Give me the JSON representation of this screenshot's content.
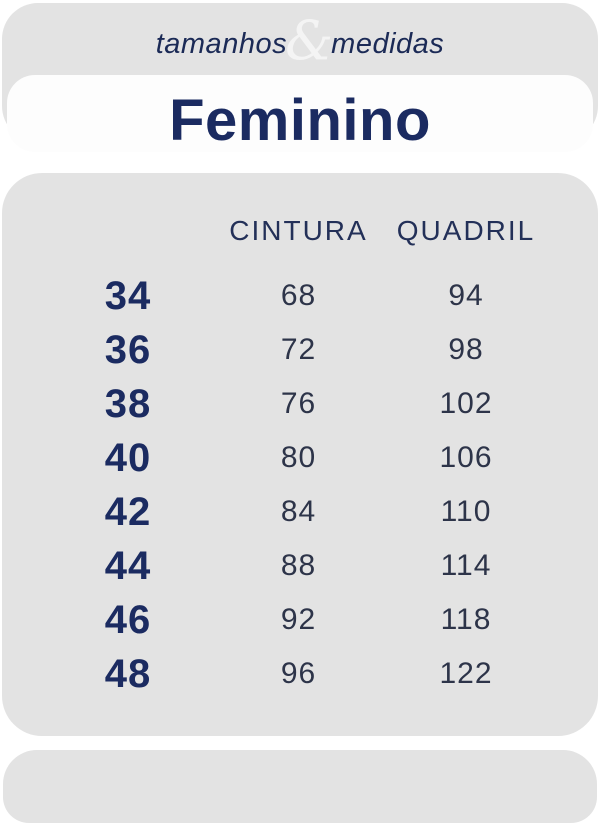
{
  "header": {
    "word_left": "tamanhos",
    "ampersand": "&",
    "word_right": "medidas"
  },
  "banner": {
    "title": "Feminino"
  },
  "table": {
    "columns": [
      "CINTURA",
      "QUADRIL"
    ],
    "rows": [
      {
        "size": "34",
        "cintura": "68",
        "quadril": "94"
      },
      {
        "size": "36",
        "cintura": "72",
        "quadril": "98"
      },
      {
        "size": "38",
        "cintura": "76",
        "quadril": "102"
      },
      {
        "size": "40",
        "cintura": "80",
        "quadril": "106"
      },
      {
        "size": "42",
        "cintura": "84",
        "quadril": "110"
      },
      {
        "size": "44",
        "cintura": "88",
        "quadril": "114"
      },
      {
        "size": "46",
        "cintura": "92",
        "quadril": "118"
      },
      {
        "size": "48",
        "cintura": "96",
        "quadril": "122"
      }
    ]
  },
  "colors": {
    "card_gray": "#e3e3e3",
    "banner_white": "#fdfdfd",
    "navy_bold": "#1b2b61",
    "navy_header": "#233058",
    "value_dark": "#2d3449",
    "ampersand_light": "#f4f4f4"
  }
}
